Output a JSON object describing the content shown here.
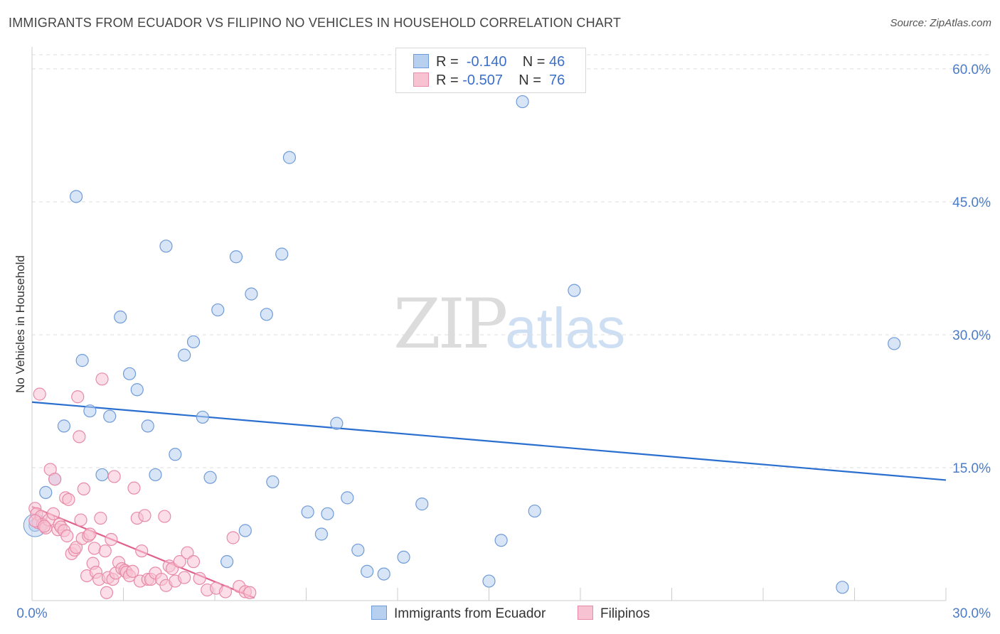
{
  "title": "IMMIGRANTS FROM ECUADOR VS FILIPINO NO VEHICLES IN HOUSEHOLD CORRELATION CHART",
  "source": "Source: ZipAtlas.com",
  "watermark": {
    "zip": "ZIP",
    "atlas": "atlas"
  },
  "legend": {
    "r_label": "R =",
    "n_label": "N =",
    "series": [
      {
        "r": "-0.140",
        "n": "46"
      },
      {
        "r": "-0.507",
        "n": "76"
      }
    ]
  },
  "bottom_legend": [
    "Immigrants from Ecuador",
    "Filipinos"
  ],
  "colors": {
    "ecuador_fill": "#b8d0f0",
    "ecuador_stroke": "#6f9bd8",
    "ecuador_line": "#2a6fd0",
    "filipino_fill": "#f7c3d3",
    "filipino_stroke": "#e88aa8",
    "filipino_line": "#e0608a",
    "grid": "#dddddd",
    "tick_text": "#4a7cc9"
  },
  "chart_data": {
    "type": "scatter",
    "title": "IMMIGRANTS FROM ECUADOR VS FILIPINO NO VEHICLES IN HOUSEHOLD CORRELATION CHART",
    "xlabel": "",
    "ylabel": "No Vehicles in Household",
    "xlim": [
      0,
      30
    ],
    "ylim": [
      0,
      62
    ],
    "x_tick_labels": [
      "0.0%",
      "30.0%"
    ],
    "y_ticks": [
      15,
      30,
      45,
      60
    ],
    "y_tick_labels": [
      "15.0%",
      "30.0%",
      "45.0%",
      "60.0%"
    ],
    "series": [
      {
        "name": "Immigrants from Ecuador",
        "r": -0.14,
        "n": 46,
        "trend": {
          "x": [
            0,
            30
          ],
          "y": [
            22.4,
            13.6
          ]
        },
        "points": [
          [
            0.1,
            8.5
          ],
          [
            0.45,
            12.2
          ],
          [
            0.75,
            13.7
          ],
          [
            1.05,
            19.7
          ],
          [
            1.45,
            45.6
          ],
          [
            1.65,
            27.1
          ],
          [
            1.9,
            21.4
          ],
          [
            2.3,
            14.2
          ],
          [
            2.55,
            20.8
          ],
          [
            2.9,
            32.0
          ],
          [
            3.2,
            25.6
          ],
          [
            3.45,
            23.8
          ],
          [
            3.8,
            19.7
          ],
          [
            4.05,
            14.2
          ],
          [
            4.4,
            40.0
          ],
          [
            4.7,
            16.5
          ],
          [
            5.0,
            27.7
          ],
          [
            5.3,
            29.2
          ],
          [
            5.6,
            20.7
          ],
          [
            5.85,
            13.9
          ],
          [
            6.1,
            32.8
          ],
          [
            6.4,
            4.4
          ],
          [
            6.7,
            38.8
          ],
          [
            7.0,
            7.9
          ],
          [
            7.2,
            34.6
          ],
          [
            7.7,
            32.3
          ],
          [
            7.9,
            13.4
          ],
          [
            8.2,
            39.1
          ],
          [
            8.45,
            50.0
          ],
          [
            9.05,
            10.0
          ],
          [
            9.5,
            7.5
          ],
          [
            9.7,
            9.8
          ],
          [
            10.0,
            20.0
          ],
          [
            10.35,
            11.6
          ],
          [
            10.7,
            5.7
          ],
          [
            11.0,
            3.3
          ],
          [
            11.55,
            3.0
          ],
          [
            12.2,
            4.9
          ],
          [
            12.8,
            10.9
          ],
          [
            15.0,
            2.2
          ],
          [
            15.4,
            6.8
          ],
          [
            16.1,
            56.3
          ],
          [
            16.5,
            10.1
          ],
          [
            17.8,
            35.0
          ],
          [
            26.6,
            1.5
          ],
          [
            28.3,
            29.0
          ]
        ]
      },
      {
        "name": "Filipinos",
        "r": -0.507,
        "n": 76,
        "trend": {
          "x": [
            0,
            7.3
          ],
          "y": [
            10.6,
            0.3
          ]
        },
        "points": [
          [
            0.1,
            10.4
          ],
          [
            0.15,
            9.8
          ],
          [
            0.2,
            8.8
          ],
          [
            0.25,
            23.3
          ],
          [
            0.3,
            9.5
          ],
          [
            0.35,
            8.6
          ],
          [
            0.45,
            8.2
          ],
          [
            0.55,
            9.1
          ],
          [
            0.6,
            14.8
          ],
          [
            0.7,
            9.8
          ],
          [
            0.75,
            13.7
          ],
          [
            0.85,
            8.0
          ],
          [
            0.9,
            8.6
          ],
          [
            0.95,
            8.3
          ],
          [
            1.05,
            7.9
          ],
          [
            1.1,
            11.6
          ],
          [
            1.15,
            7.3
          ],
          [
            1.2,
            11.4
          ],
          [
            1.3,
            5.3
          ],
          [
            1.4,
            5.7
          ],
          [
            1.45,
            6.0
          ],
          [
            1.5,
            23.0
          ],
          [
            1.55,
            18.5
          ],
          [
            1.6,
            9.1
          ],
          [
            1.65,
            7.0
          ],
          [
            1.7,
            12.6
          ],
          [
            1.8,
            2.8
          ],
          [
            1.85,
            7.3
          ],
          [
            1.9,
            7.5
          ],
          [
            2.0,
            4.2
          ],
          [
            2.05,
            5.9
          ],
          [
            2.1,
            3.2
          ],
          [
            2.2,
            2.4
          ],
          [
            2.25,
            9.3
          ],
          [
            2.3,
            25.0
          ],
          [
            2.4,
            5.6
          ],
          [
            2.45,
            0.9
          ],
          [
            2.5,
            2.6
          ],
          [
            2.6,
            6.9
          ],
          [
            2.65,
            2.4
          ],
          [
            2.7,
            14.0
          ],
          [
            2.75,
            3.1
          ],
          [
            2.85,
            4.3
          ],
          [
            2.95,
            3.6
          ],
          [
            3.05,
            3.4
          ],
          [
            3.1,
            3.2
          ],
          [
            3.2,
            2.8
          ],
          [
            3.3,
            3.3
          ],
          [
            3.35,
            12.7
          ],
          [
            3.45,
            9.3
          ],
          [
            3.55,
            2.2
          ],
          [
            3.6,
            5.6
          ],
          [
            3.7,
            9.6
          ],
          [
            3.8,
            2.4
          ],
          [
            3.9,
            2.4
          ],
          [
            4.05,
            3.1
          ],
          [
            4.25,
            2.4
          ],
          [
            4.35,
            9.5
          ],
          [
            4.4,
            1.7
          ],
          [
            4.5,
            3.9
          ],
          [
            4.6,
            3.6
          ],
          [
            4.7,
            2.2
          ],
          [
            4.85,
            4.4
          ],
          [
            5.0,
            2.6
          ],
          [
            5.1,
            5.4
          ],
          [
            5.3,
            4.4
          ],
          [
            5.5,
            2.5
          ],
          [
            5.75,
            1.2
          ],
          [
            6.05,
            1.4
          ],
          [
            6.35,
            1.0
          ],
          [
            6.6,
            7.1
          ],
          [
            6.8,
            1.6
          ],
          [
            7.0,
            1.0
          ],
          [
            7.15,
            0.9
          ],
          [
            0.1,
            9.0
          ],
          [
            0.4,
            8.4
          ]
        ]
      }
    ]
  }
}
